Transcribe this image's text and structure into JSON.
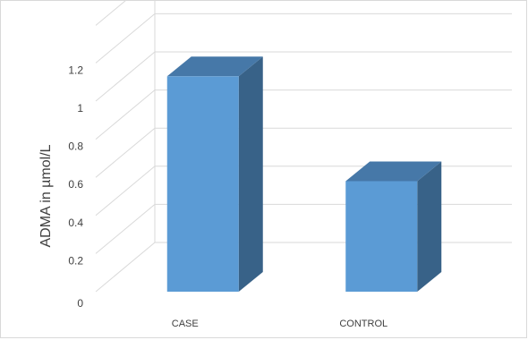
{
  "chart_data": {
    "type": "bar",
    "style": "3d-column",
    "title": "",
    "xlabel": "",
    "ylabel": "ADMA in µmol/L",
    "categories": [
      "CASE",
      "CONTROL"
    ],
    "values": [
      1.13,
      0.58
    ],
    "ylim": [
      0,
      1.2
    ],
    "yticks": [
      "0",
      "0.2",
      "0.4",
      "0.6",
      "0.8",
      "1",
      "1.2"
    ],
    "grid": true,
    "legend": "none",
    "colors": {
      "bar_front": "#5b9bd5",
      "bar_side": "#386288",
      "bar_top": "#4678a8",
      "grid": "#d9d9d9"
    }
  }
}
